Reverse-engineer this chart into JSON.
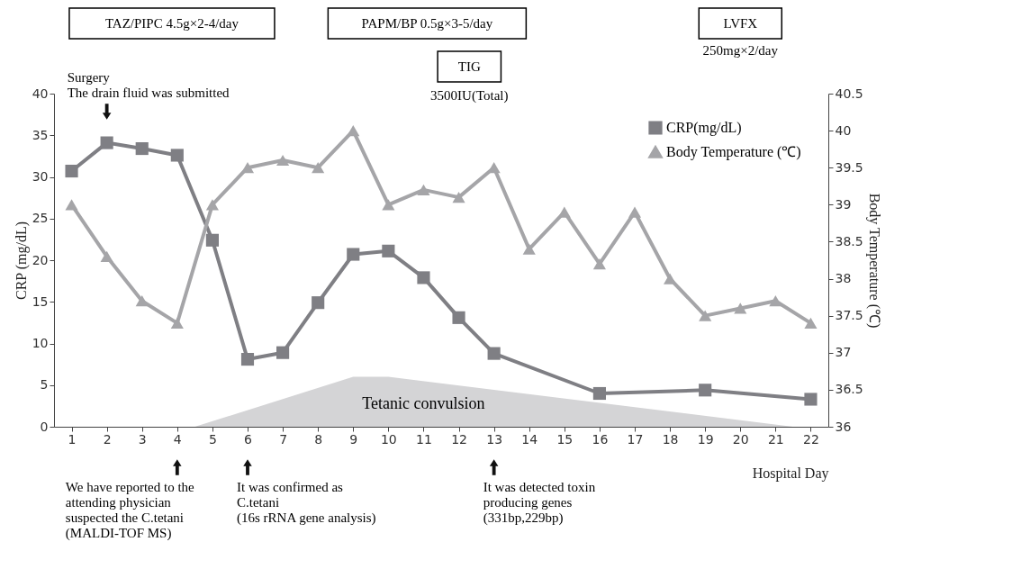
{
  "chart_data": {
    "type": "line",
    "xlabel": "Hospital Day",
    "ylabel": "CRP (mg/dL)",
    "y2label": "Body Temperature (℃)",
    "x": [
      1,
      2,
      3,
      4,
      5,
      6,
      7,
      8,
      9,
      10,
      11,
      12,
      13,
      14,
      15,
      16,
      17,
      18,
      19,
      20,
      21,
      22
    ],
    "xlim": [
      0.5,
      22.5
    ],
    "xticks": [
      1,
      2,
      3,
      4,
      5,
      6,
      7,
      8,
      9,
      10,
      11,
      12,
      13,
      14,
      15,
      16,
      17,
      18,
      19,
      20,
      21,
      22
    ],
    "ylim": [
      0,
      40
    ],
    "yticks": [
      0,
      5,
      10,
      15,
      20,
      25,
      30,
      35,
      40
    ],
    "y2lim": [
      36,
      40.5
    ],
    "y2ticks": [
      36,
      36.5,
      37,
      37.5,
      38,
      38.5,
      39,
      39.5,
      40,
      40.5
    ],
    "series": [
      {
        "type": "area",
        "color": "#d4d4d6",
        "x": [
          4.5,
          9,
          10,
          21.5
        ],
        "values": [
          0,
          6,
          6,
          0
        ]
      },
      {
        "name": "CRP(mg/dL)",
        "color": "#7f7f84",
        "marker": "square",
        "x": [
          1,
          2,
          3,
          4,
          5,
          6,
          7,
          8,
          9,
          10,
          11,
          12,
          13,
          16,
          19,
          22
        ],
        "values": [
          30.7,
          34.1,
          33.4,
          32.6,
          22.4,
          8.1,
          8.9,
          14.9,
          20.7,
          21.1,
          17.9,
          13.1,
          8.8,
          4.0,
          4.4,
          3.3
        ]
      },
      {
        "name": "Body Temperature (℃)",
        "color": "#a5a5a8",
        "marker": "triangle",
        "axis": "y2",
        "values": [
          39.0,
          38.3,
          37.7,
          37.4,
          39.0,
          39.5,
          39.6,
          39.5,
          40.0,
          39.0,
          39.2,
          39.1,
          39.5,
          38.4,
          38.9,
          38.2,
          38.9,
          38.0,
          37.5,
          37.6,
          37.7,
          37.4
        ]
      }
    ],
    "annotations": [
      "TAZ/PIPC 4.5g×2-4/day",
      "PAPM/BP 0.5g×3-5/day",
      "LVFX",
      "250mg×2/day",
      "TIG",
      "3500IU(Total)",
      "Surgery\nThe drain fluid was submitted",
      "Tetanic convulsion",
      "We have reported to the\nattending physician\nsuspected the C.tetani\n(MALDI-TOF MS)",
      "It was confirmed as\nC.tetani\n(16s rRNA gene analysis)",
      "It was detected toxin\nproducing genes\n(331bp,229bp)"
    ],
    "legend": "top right",
    "grid": false
  }
}
